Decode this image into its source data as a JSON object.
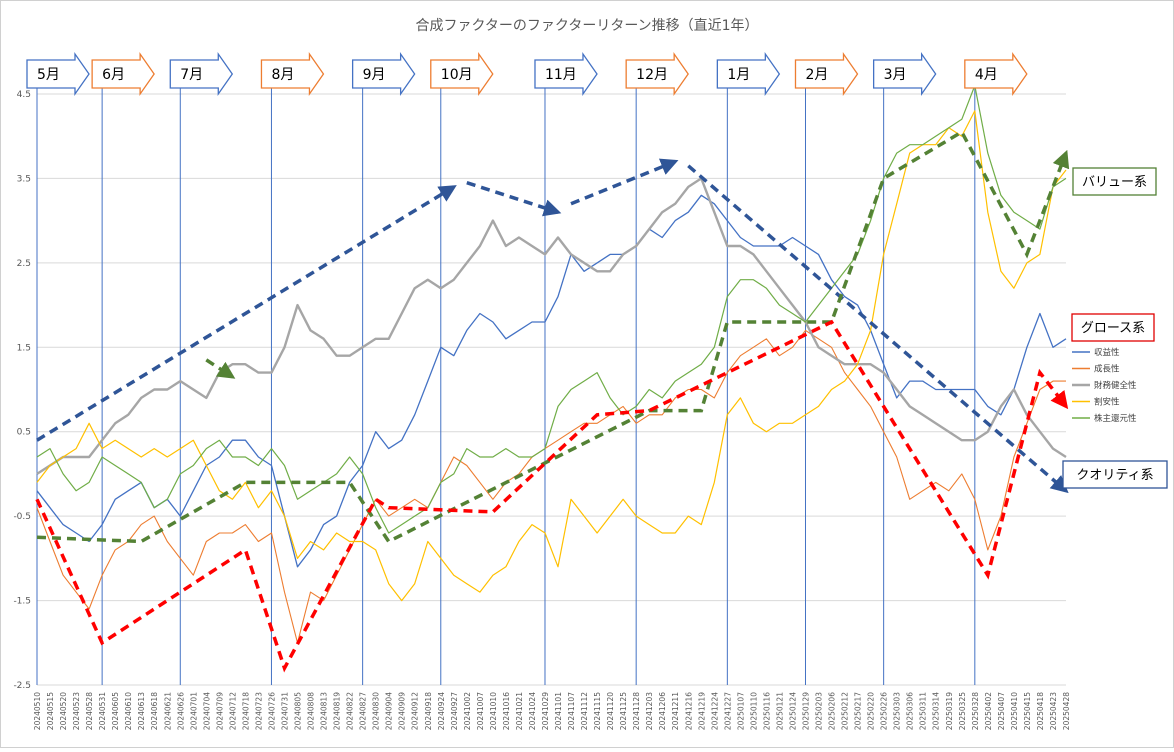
{
  "chart_data": {
    "type": "line",
    "title": "合成ファクターのファクターリターン推移（直近1年）",
    "ylim": [
      -2.5,
      4.5
    ],
    "yticks": [
      -2.5,
      -1.5,
      -0.5,
      0.5,
      1.5,
      2.5,
      3.5,
      4.5
    ],
    "grid": "horizontal",
    "x_labels": [
      "20240510",
      "20240515",
      "20240520",
      "20240523",
      "20240528",
      "20240531",
      "20240605",
      "20240610",
      "20240613",
      "20240618",
      "20240621",
      "20240626",
      "20240701",
      "20240704",
      "20240709",
      "20240712",
      "20240718",
      "20240723",
      "20240726",
      "20240731",
      "20240805",
      "20240808",
      "20240813",
      "20240819",
      "20240822",
      "20240827",
      "20240830",
      "20240904",
      "20240909",
      "20240912",
      "20240918",
      "20240924",
      "20240927",
      "20241002",
      "20241007",
      "20241010",
      "20241016",
      "20241021",
      "20241024",
      "20241029",
      "20241101",
      "20241107",
      "20241112",
      "20241115",
      "20241120",
      "20241125",
      "20241128",
      "20241203",
      "20241206",
      "20241211",
      "20241216",
      "20241219",
      "20241224",
      "20241227",
      "20250107",
      "20250110",
      "20250116",
      "20250121",
      "20250124",
      "20250129",
      "20250203",
      "20250206",
      "20250212",
      "20250217",
      "20250220",
      "20250226",
      "20250303",
      "20250306",
      "20250311",
      "20250314",
      "20250319",
      "20250325",
      "20250328",
      "20250402",
      "20250407",
      "20250410",
      "20250415",
      "20250418",
      "20250423",
      "20250428"
    ],
    "month_labels": [
      "5月",
      "6月",
      "7月",
      "8月",
      "9月",
      "10月",
      "11月",
      "12月",
      "1月",
      "2月",
      "3月",
      "4月"
    ],
    "month_arrow_colors": [
      "#4472c4",
      "#ed7d31",
      "#4472c4",
      "#ed7d31",
      "#4472c4",
      "#ed7d31",
      "#4472c4",
      "#ed7d31",
      "#4472c4",
      "#ed7d31",
      "#4472c4",
      "#ed7d31"
    ],
    "month_start_index": [
      0,
      5,
      11,
      18,
      25,
      31,
      39,
      46,
      53,
      59,
      65,
      72
    ],
    "series": [
      {
        "name": "収益性",
        "color": "#4472c4",
        "width": 1.3,
        "values": [
          -0.2,
          -0.4,
          -0.6,
          -0.7,
          -0.8,
          -0.6,
          -0.3,
          -0.2,
          -0.1,
          -0.4,
          -0.3,
          -0.5,
          -0.2,
          0.1,
          0.2,
          0.4,
          0.4,
          0.2,
          0.1,
          -0.5,
          -1.1,
          -0.9,
          -0.6,
          -0.5,
          -0.1,
          0.1,
          0.5,
          0.3,
          0.4,
          0.7,
          1.1,
          1.5,
          1.4,
          1.7,
          1.9,
          1.8,
          1.6,
          1.7,
          1.8,
          1.8,
          2.1,
          2.6,
          2.4,
          2.5,
          2.6,
          2.6,
          2.7,
          2.9,
          2.8,
          3.0,
          3.1,
          3.3,
          3.2,
          3.0,
          2.8,
          2.7,
          2.7,
          2.7,
          2.8,
          2.7,
          2.6,
          2.3,
          2.1,
          2.0,
          1.7,
          1.3,
          0.9,
          1.1,
          1.1,
          1.0,
          1.0,
          1.0,
          1.0,
          0.8,
          0.7,
          1.0,
          1.5,
          1.9,
          1.5,
          1.6
        ]
      },
      {
        "name": "成長性",
        "color": "#ed7d31",
        "width": 1.1,
        "values": [
          -0.4,
          -0.8,
          -1.2,
          -1.4,
          -1.6,
          -1.2,
          -0.9,
          -0.8,
          -0.6,
          -0.5,
          -0.8,
          -1.0,
          -1.2,
          -0.8,
          -0.7,
          -0.7,
          -0.6,
          -0.8,
          -0.7,
          -1.4,
          -2.0,
          -1.4,
          -1.5,
          -1.2,
          -0.9,
          -0.6,
          -0.3,
          -0.5,
          -0.4,
          -0.3,
          -0.4,
          -0.1,
          0.2,
          0.1,
          -0.1,
          -0.3,
          -0.1,
          0.0,
          0.2,
          0.3,
          0.4,
          0.5,
          0.6,
          0.6,
          0.7,
          0.8,
          0.6,
          0.7,
          0.7,
          0.9,
          1.0,
          1.0,
          0.9,
          1.2,
          1.4,
          1.5,
          1.6,
          1.4,
          1.5,
          1.7,
          1.6,
          1.5,
          1.2,
          1.0,
          0.8,
          0.5,
          0.2,
          -0.3,
          -0.2,
          -0.1,
          -0.2,
          0.0,
          -0.3,
          -0.9,
          -0.5,
          0.2,
          0.6,
          1.0,
          1.1,
          1.1
        ]
      },
      {
        "name": "財務健全性",
        "color": "#a6a6a6",
        "width": 2.4,
        "values": [
          0.0,
          0.1,
          0.2,
          0.2,
          0.2,
          0.4,
          0.6,
          0.7,
          0.9,
          1.0,
          1.0,
          1.1,
          1.0,
          0.9,
          1.2,
          1.3,
          1.3,
          1.2,
          1.2,
          1.5,
          2.0,
          1.7,
          1.6,
          1.4,
          1.4,
          1.5,
          1.6,
          1.6,
          1.9,
          2.2,
          2.3,
          2.2,
          2.3,
          2.5,
          2.7,
          3.0,
          2.7,
          2.8,
          2.7,
          2.6,
          2.8,
          2.6,
          2.5,
          2.4,
          2.4,
          2.6,
          2.7,
          2.9,
          3.1,
          3.2,
          3.4,
          3.5,
          3.1,
          2.7,
          2.7,
          2.6,
          2.4,
          2.2,
          2.0,
          1.8,
          1.5,
          1.4,
          1.3,
          1.3,
          1.3,
          1.2,
          1.0,
          0.8,
          0.7,
          0.6,
          0.5,
          0.4,
          0.4,
          0.5,
          0.8,
          1.0,
          0.7,
          0.5,
          0.3,
          0.2
        ]
      },
      {
        "name": "割安性",
        "color": "#ffc000",
        "width": 1.2,
        "values": [
          -0.1,
          0.1,
          0.2,
          0.3,
          0.6,
          0.3,
          0.4,
          0.3,
          0.2,
          0.3,
          0.2,
          0.3,
          0.4,
          0.1,
          -0.2,
          -0.3,
          -0.1,
          -0.4,
          -0.2,
          -0.5,
          -1.0,
          -0.8,
          -0.9,
          -0.7,
          -0.8,
          -0.8,
          -0.9,
          -1.3,
          -1.5,
          -1.3,
          -0.8,
          -1.0,
          -1.2,
          -1.3,
          -1.4,
          -1.2,
          -1.1,
          -0.8,
          -0.6,
          -0.7,
          -1.1,
          -0.3,
          -0.5,
          -0.7,
          -0.5,
          -0.3,
          -0.5,
          -0.6,
          -0.7,
          -0.7,
          -0.5,
          -0.6,
          -0.1,
          0.7,
          0.9,
          0.6,
          0.5,
          0.6,
          0.6,
          0.7,
          0.8,
          1.0,
          1.1,
          1.3,
          1.7,
          2.6,
          3.2,
          3.8,
          3.9,
          3.9,
          4.1,
          4.0,
          4.3,
          3.1,
          2.4,
          2.2,
          2.5,
          2.6,
          3.4,
          3.6
        ]
      },
      {
        "name": "株主還元性",
        "color": "#70ad47",
        "width": 1.2,
        "values": [
          0.2,
          0.3,
          0.0,
          -0.2,
          -0.1,
          0.2,
          0.1,
          0.0,
          -0.1,
          -0.4,
          -0.3,
          0.0,
          0.1,
          0.3,
          0.4,
          0.2,
          0.2,
          0.1,
          0.3,
          0.1,
          -0.3,
          -0.2,
          -0.1,
          0.0,
          0.2,
          0.0,
          -0.4,
          -0.7,
          -0.6,
          -0.5,
          -0.4,
          -0.1,
          0.0,
          0.3,
          0.2,
          0.2,
          0.3,
          0.2,
          0.2,
          0.3,
          0.8,
          1.0,
          1.1,
          1.2,
          0.9,
          0.7,
          0.8,
          1.0,
          0.9,
          1.1,
          1.2,
          1.3,
          1.5,
          2.1,
          2.3,
          2.3,
          2.2,
          2.0,
          1.9,
          1.8,
          2.0,
          2.2,
          2.4,
          2.6,
          3.0,
          3.5,
          3.8,
          3.9,
          3.9,
          4.0,
          4.1,
          4.2,
          4.6,
          3.8,
          3.3,
          3.1,
          3.0,
          2.9,
          3.4,
          3.5
        ]
      }
    ],
    "annotations": [
      {
        "text": "バリュー系",
        "color": "#538135"
      },
      {
        "text": "グロース系",
        "color": "#e00000"
      },
      {
        "text": "クオリティ系",
        "color": "#2f5597"
      }
    ],
    "trend_arrows": {
      "quality": {
        "color": "#2f5597",
        "points": [
          [
            0,
            0.4
          ],
          [
            32,
            3.4
          ]
        ],
        "points2": [
          [
            33,
            3.45
          ],
          [
            40,
            3.1
          ]
        ],
        "points3": [
          [
            41,
            3.2
          ],
          [
            49,
            3.7
          ]
        ],
        "points4": [
          [
            50,
            3.65
          ],
          [
            79,
            -0.2
          ]
        ]
      },
      "value": {
        "color": "#548235",
        "points": [
          [
            0,
            -0.75
          ],
          [
            8,
            -0.8
          ],
          [
            16,
            -0.1
          ],
          [
            24,
            -0.1
          ],
          [
            27,
            -0.8
          ],
          [
            47,
            0.75
          ],
          [
            51,
            0.75
          ],
          [
            53,
            1.8
          ],
          [
            61,
            1.8
          ],
          [
            65,
            3.5
          ],
          [
            71,
            4.05
          ],
          [
            76,
            2.6
          ],
          [
            79,
            3.8
          ]
        ],
        "small": [
          [
            13,
            1.35
          ],
          [
            15,
            1.15
          ]
        ]
      },
      "growth": {
        "color": "#ff0000",
        "points": [
          [
            0,
            -0.3
          ],
          [
            5,
            -2.0
          ],
          [
            16,
            -0.9
          ],
          [
            19,
            -2.3
          ],
          [
            26,
            -0.3
          ],
          [
            27,
            -0.4
          ],
          [
            35,
            -0.45
          ],
          [
            43,
            0.7
          ],
          [
            47,
            0.75
          ],
          [
            61,
            1.8
          ],
          [
            73,
            -1.2
          ],
          [
            77,
            1.2
          ],
          [
            79,
            0.8
          ]
        ]
      }
    }
  }
}
